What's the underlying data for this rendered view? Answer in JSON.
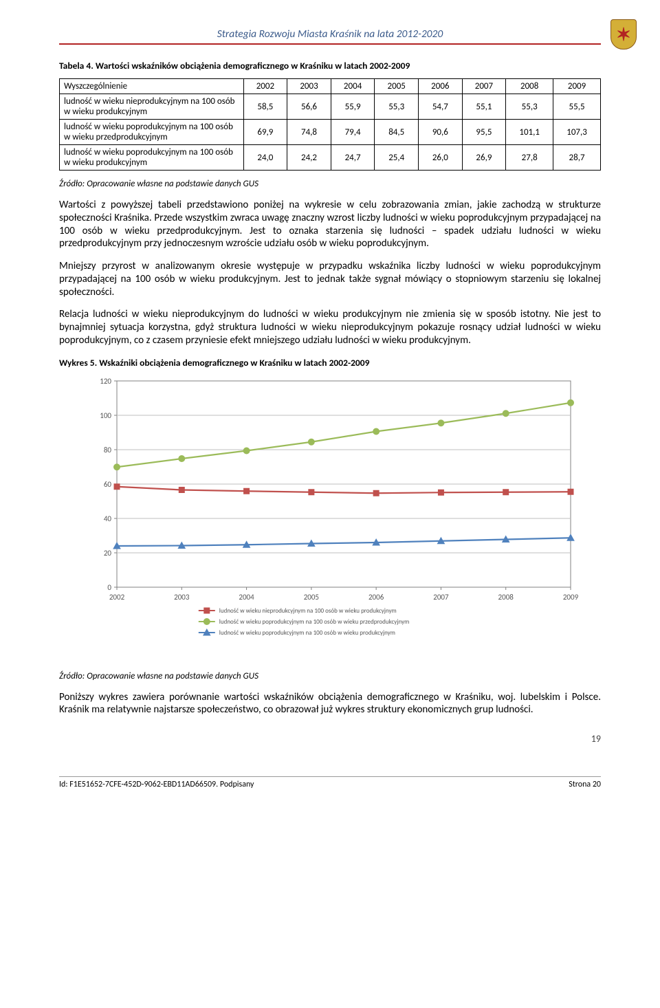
{
  "doc_header": "Strategia Rozwoju Miasta Kraśnik na lata 2012-2020",
  "table_caption": "Tabela 4. Wartości wskaźników obciążenia demograficznego w Kraśniku w latach 2002-2009",
  "table": {
    "columns": [
      "Wyszczególnienie",
      "2002",
      "2003",
      "2004",
      "2005",
      "2006",
      "2007",
      "2008",
      "2009"
    ],
    "rows": [
      {
        "label": "ludność w wieku nieprodukcyjnym na 100 osób w wieku produkcyjnym",
        "values": [
          "58,5",
          "56,6",
          "55,9",
          "55,3",
          "54,7",
          "55,1",
          "55,3",
          "55,5"
        ]
      },
      {
        "label": "ludność w wieku poprodukcyjnym na 100 osób w wieku przedprodukcyjnym",
        "values": [
          "69,9",
          "74,8",
          "79,4",
          "84,5",
          "90,6",
          "95,5",
          "101,1",
          "107,3"
        ]
      },
      {
        "label": "ludność w wieku poprodukcyjnym na 100 osób w wieku produkcyjnym",
        "values": [
          "24,0",
          "24,2",
          "24,7",
          "25,4",
          "26,0",
          "26,9",
          "27,8",
          "28,7"
        ]
      }
    ]
  },
  "source": "Źródło: Opracowanie własne na podstawie danych GUS",
  "para1": "Wartości z powyższej tabeli przedstawiono poniżej na wykresie w celu zobrazowania zmian, jakie zachodzą w strukturze społeczności Kraśnika. Przede wszystkim zwraca uwagę znaczny wzrost liczby ludności w wieku poprodukcyjnym przypadającej na 100 osób w wieku przedprodukcyjnym. Jest to oznaka starzenia się ludności – spadek udziału ludności w wieku przedprodukcyjnym przy jednoczesnym wzroście udziału osób w wieku poprodukcyjnym.",
  "para2": "Mniejszy przyrost w analizowanym okresie występuje w przypadku wskaźnika liczby ludności w wieku poprodukcyjnym przypadającej na 100 osób w wieku produkcyjnym. Jest to jednak także sygnał mówiący o stopniowym starzeniu się lokalnej społeczności.",
  "para3": "Relacja ludności w wieku nieprodukcyjnym do ludności w wieku produkcyjnym nie zmienia się w sposób istotny. Nie jest to bynajmniej sytuacja korzystna, gdyż struktura ludności w wieku nieprodukcyjnym pokazuje rosnący udział ludności w wieku poprodukcyjnym, co z czasem przyniesie efekt mniejszego udziału ludności w wieku produkcyjnym.",
  "chart_caption": "Wykres 5. Wskaźniki obciążenia demograficznego w Kraśniku w latach 2002-2009",
  "chart": {
    "type": "line",
    "years": [
      "2002",
      "2003",
      "2004",
      "2005",
      "2006",
      "2007",
      "2008",
      "2009"
    ],
    "ylim": [
      0,
      120
    ],
    "ytick_step": 20,
    "yticks": [
      "0",
      "20",
      "40",
      "60",
      "80",
      "100",
      "120"
    ],
    "plot_bg": "#ffffff",
    "grid_color": "#bfbfbf",
    "axis_color": "#808080",
    "label_fontsize": 11,
    "tick_fontsize": 11,
    "legend_fontsize": 9,
    "series": [
      {
        "label": "ludność w wieku nieprodukcyjnym na 100 osób w wieku produkcyjnym",
        "color": "#c0504d",
        "marker": "square",
        "values": [
          58.5,
          56.6,
          55.9,
          55.3,
          54.7,
          55.1,
          55.3,
          55.5
        ]
      },
      {
        "label": "ludność w wieku poprodukcyjnym na 100 osób w wieku przedprodukcyjnym",
        "color": "#9bbb59",
        "marker": "circle",
        "values": [
          69.9,
          74.8,
          79.4,
          84.5,
          90.6,
          95.5,
          101.1,
          107.3
        ]
      },
      {
        "label": "ludność w wieku poprodukcyjnym na 100 osób w wieku produkcyjnym",
        "color": "#4f81bd",
        "marker": "triangle",
        "values": [
          24.0,
          24.2,
          24.7,
          25.4,
          26.0,
          26.9,
          27.8,
          28.7
        ]
      }
    ]
  },
  "para4": "Poniższy wykres zawiera porównanie wartości wskaźników obciążenia demograficznego w Kraśniku, woj. lubelskim i Polsce. Kraśnik ma relatywnie najstarsze społeczeństwo, co obrazował już wykres struktury ekonomicznych grup ludności.",
  "page_num": "19",
  "footer_id": "Id: F1E51652-7CFE-452D-9062-EBD11AD66509. Podpisany",
  "footer_page": "Strona 20"
}
